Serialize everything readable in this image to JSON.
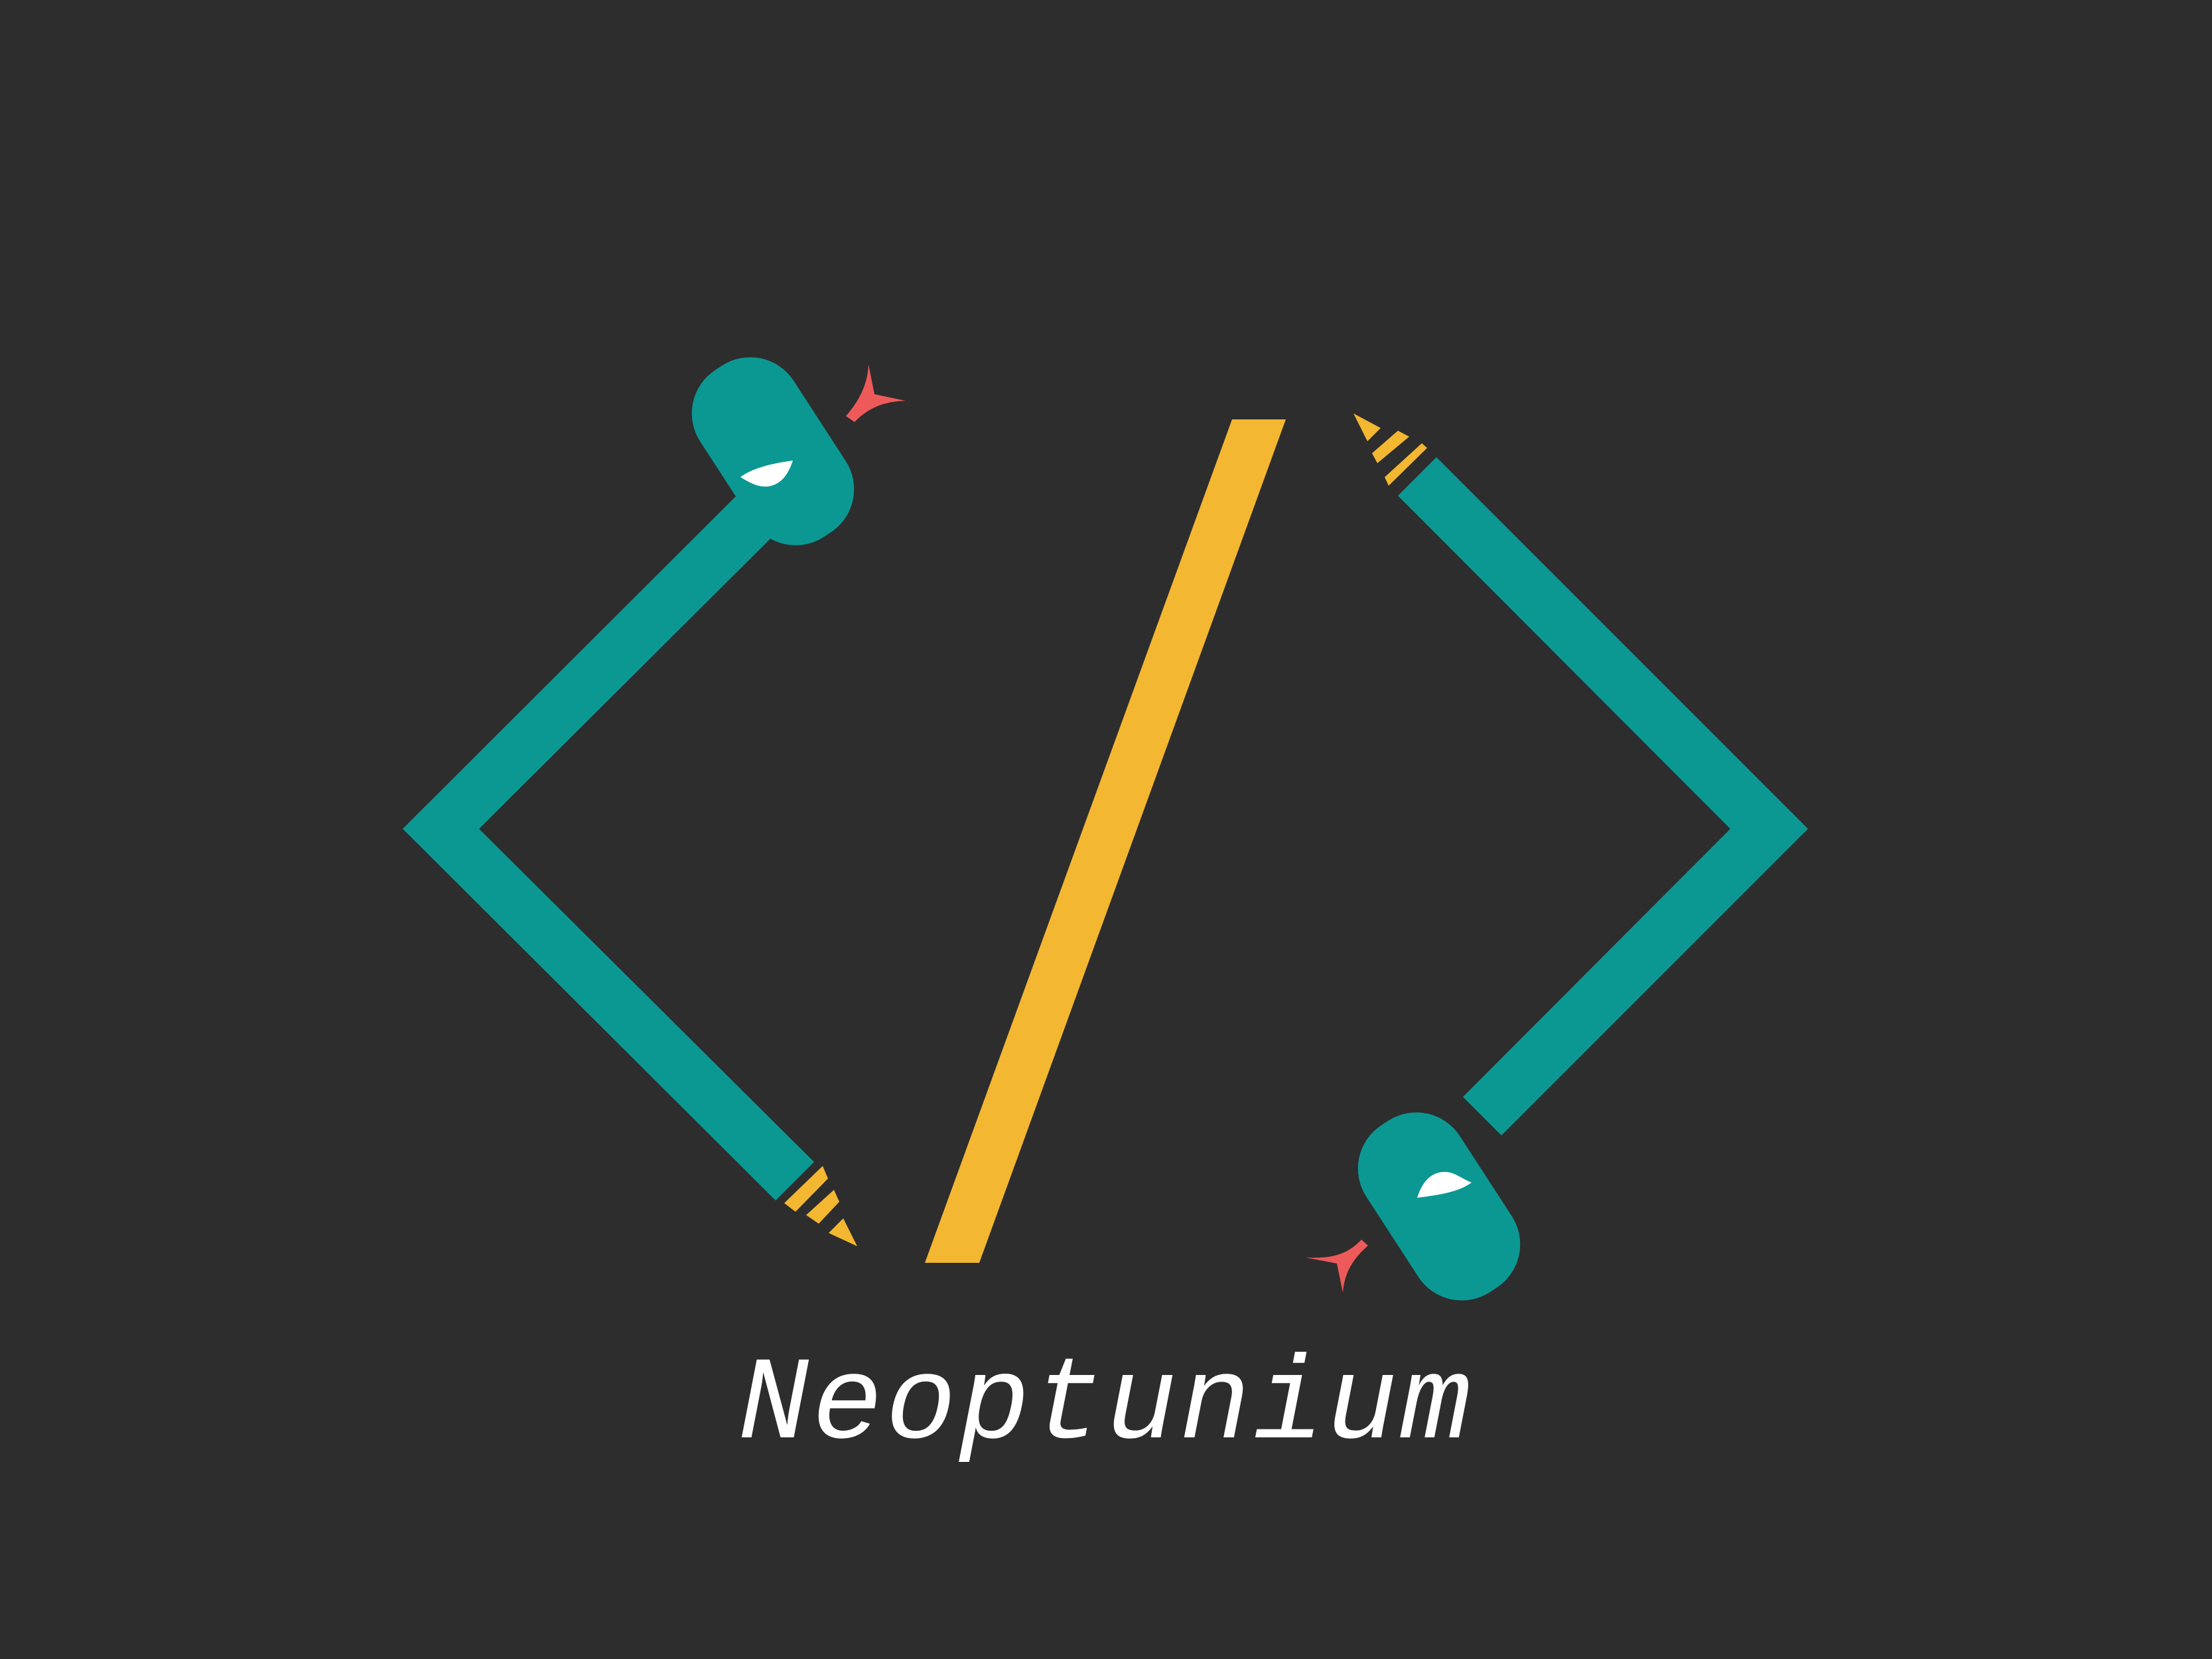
{
  "brand": {
    "name": "Neoptunium"
  },
  "colors": {
    "background": "#2d2d2d",
    "snake_body": "#0b9893",
    "slash": "#f4b731",
    "rattle": "#f4b731",
    "tongue": "#ee5a5a",
    "eye": "#ffffff"
  },
  "icons": [
    "left-snake-bracket-icon",
    "slash-icon",
    "right-snake-bracket-icon"
  ]
}
